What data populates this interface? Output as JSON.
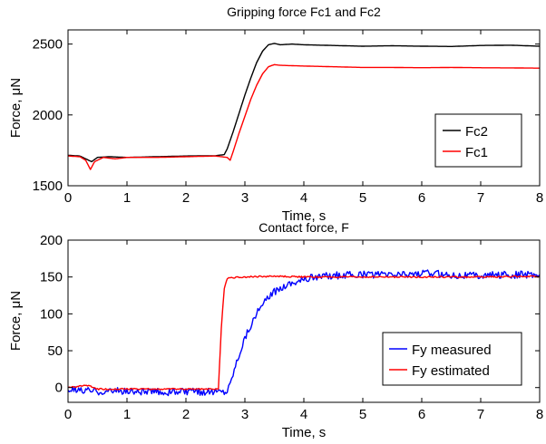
{
  "chart_data": [
    {
      "type": "line",
      "title": "Gripping force Fc1 and Fc2",
      "xlabel": "Time, s",
      "ylabel": "Force, μN",
      "xlim": [
        0,
        8
      ],
      "ylim": [
        1500,
        2600
      ],
      "xticks": [
        "0",
        "1",
        "2",
        "3",
        "4",
        "5",
        "6",
        "7",
        "8"
      ],
      "yticks": [
        "1500",
        "2000",
        "2500"
      ],
      "grid": false,
      "legend_position": "right",
      "series": [
        {
          "name": "Fc2",
          "color": "#000000",
          "x": [
            0,
            0.2,
            0.3,
            0.4,
            0.5,
            0.7,
            1.0,
            1.5,
            2.0,
            2.5,
            2.65,
            2.7,
            2.8,
            2.9,
            3.0,
            3.1,
            3.2,
            3.3,
            3.4,
            3.5,
            3.6,
            3.8,
            4.0,
            4.5,
            5.0,
            5.5,
            6.0,
            6.5,
            7.0,
            7.5,
            8.0
          ],
          "y": [
            1715,
            1710,
            1690,
            1670,
            1700,
            1705,
            1700,
            1705,
            1710,
            1712,
            1720,
            1760,
            1880,
            2010,
            2140,
            2260,
            2370,
            2450,
            2495,
            2505,
            2495,
            2500,
            2495,
            2490,
            2485,
            2488,
            2485,
            2483,
            2490,
            2492,
            2485
          ]
        },
        {
          "name": "Fc1",
          "color": "#ff0000",
          "x": [
            0,
            0.2,
            0.3,
            0.38,
            0.45,
            0.6,
            0.8,
            1.0,
            1.5,
            2.0,
            2.5,
            2.7,
            2.75,
            2.8,
            2.9,
            3.0,
            3.1,
            3.2,
            3.3,
            3.4,
            3.5,
            3.6,
            4.0,
            4.5,
            5.0,
            5.5,
            6.0,
            6.5,
            7.0,
            7.5,
            8.0
          ],
          "y": [
            1710,
            1705,
            1680,
            1615,
            1670,
            1700,
            1690,
            1700,
            1700,
            1705,
            1710,
            1700,
            1680,
            1740,
            1870,
            1990,
            2110,
            2210,
            2290,
            2340,
            2355,
            2350,
            2345,
            2340,
            2335,
            2335,
            2333,
            2335,
            2333,
            2332,
            2330
          ]
        }
      ]
    },
    {
      "type": "line",
      "title": "Contact force, F",
      "xlabel": "Time, s",
      "ylabel": "Force, μN",
      "xlim": [
        0,
        8
      ],
      "ylim": [
        -20,
        200
      ],
      "xticks": [
        "0",
        "1",
        "2",
        "3",
        "4",
        "5",
        "6",
        "7",
        "8"
      ],
      "yticks": [
        "0",
        "50",
        "100",
        "150",
        "200"
      ],
      "grid": false,
      "legend_position": "right",
      "series": [
        {
          "name": "Fy measured",
          "color": "#0000ff",
          "x": [
            0,
            0.5,
            1.0,
            1.5,
            2.0,
            2.5,
            2.65,
            2.7,
            2.75,
            2.8,
            2.9,
            3.0,
            3.1,
            3.2,
            3.3,
            3.4,
            3.5,
            3.7,
            3.9,
            4.2,
            4.5,
            5.0,
            5.5,
            6.0,
            6.5,
            7.0,
            7.5,
            8.0
          ],
          "y": [
            -3,
            -5,
            -5,
            -6,
            -6,
            -5,
            -5,
            -4,
            5,
            20,
            45,
            68,
            85,
            100,
            112,
            122,
            130,
            140,
            145,
            150,
            152,
            153,
            153,
            155,
            153,
            152,
            153,
            153
          ],
          "noise": 5
        },
        {
          "name": "Fy estimated",
          "color": "#ff0000",
          "x": [
            0,
            0.35,
            0.42,
            0.5,
            1.0,
            1.5,
            2.0,
            2.55,
            2.6,
            2.65,
            2.7,
            2.75,
            3.0,
            3.5,
            4.0,
            5.0,
            6.0,
            7.0,
            8.0
          ],
          "y": [
            0,
            3,
            0,
            -2,
            -2,
            -2,
            -2,
            -2,
            80,
            135,
            148,
            149,
            150,
            151,
            150,
            150,
            150,
            150,
            151
          ],
          "noise": 1
        }
      ]
    }
  ]
}
